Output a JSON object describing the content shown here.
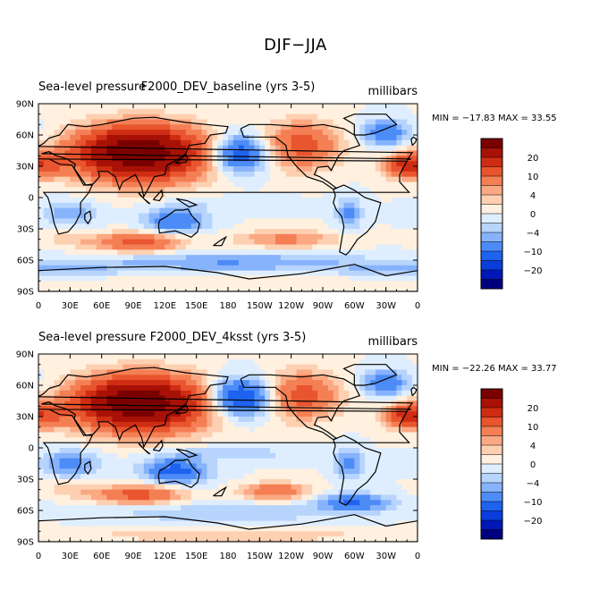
{
  "title": "DJF−JJA",
  "colorbar": {
    "colors": [
      "#00007f",
      "#0018b8",
      "#0a3ddc",
      "#1e62f0",
      "#4d8cf7",
      "#86b3fb",
      "#b7d4fd",
      "#dfeefe",
      "#fff0df",
      "#fdd0b2",
      "#fba983",
      "#f47f54",
      "#e8552e",
      "#cf2d13",
      "#a81106",
      "#7a0000"
    ],
    "levels": [
      -30,
      -20,
      -15,
      -10,
      -6,
      -4,
      -2,
      0,
      2,
      4,
      6,
      10,
      15,
      20,
      30
    ],
    "labels": [
      "20",
      "10",
      "4",
      "0",
      "−4",
      "−10",
      "−20"
    ]
  },
  "chart_data": [
    {
      "type": "heatmap",
      "title_left": "Sea-level pressure",
      "title_center": "F2000_DEV_baseline (yrs 3-5)",
      "units": "millibars",
      "stats": "MIN = −17.83 MAX =  33.55",
      "min": -17.83,
      "max": 33.55,
      "x_ticks": [
        "0",
        "30E",
        "60E",
        "90E",
        "120E",
        "150E",
        "180",
        "150W",
        "120W",
        "90W",
        "60W",
        "30W",
        "0"
      ],
      "y_ticks": [
        "90N",
        "60N",
        "30N",
        "0",
        "30S",
        "60S",
        "90S"
      ],
      "xlim": [
        0,
        360
      ],
      "ylim": [
        -90,
        90
      ],
      "features": [
        {
          "lon": 100,
          "lat": 42,
          "w": 60,
          "h": 25,
          "v": 30
        },
        {
          "lon": 85,
          "lat": 45,
          "w": 40,
          "h": 18,
          "v": 12
        },
        {
          "lon": 5,
          "lat": 32,
          "w": 22,
          "h": 13,
          "v": 10
        },
        {
          "lon": 250,
          "lat": 50,
          "w": 35,
          "h": 22,
          "v": 12
        },
        {
          "lon": 345,
          "lat": 30,
          "w": 18,
          "h": 10,
          "v": 12
        },
        {
          "lon": 190,
          "lat": 42,
          "w": 28,
          "h": 18,
          "v": -15
        },
        {
          "lon": 330,
          "lat": 62,
          "w": 22,
          "h": 12,
          "v": -10
        },
        {
          "lon": 130,
          "lat": -22,
          "w": 28,
          "h": 12,
          "v": -10
        },
        {
          "lon": 30,
          "lat": -15,
          "w": 25,
          "h": 12,
          "v": -6
        },
        {
          "lon": 295,
          "lat": -15,
          "w": 12,
          "h": 14,
          "v": -7
        },
        {
          "lon": 180,
          "lat": -5,
          "w": 60,
          "h": 6,
          "v": -2
        },
        {
          "lon": 95,
          "lat": -43,
          "w": 40,
          "h": 9,
          "v": 12
        },
        {
          "lon": 235,
          "lat": -40,
          "w": 48,
          "h": 8,
          "v": 7
        },
        {
          "lon": 30,
          "lat": -40,
          "w": 25,
          "h": 8,
          "v": 3
        },
        {
          "lon": 180,
          "lat": -62,
          "w": 120,
          "h": 9,
          "v": -6
        },
        {
          "lon": 0,
          "lat": -68,
          "w": 90,
          "h": 8,
          "v": -4
        },
        {
          "lon": 180,
          "lat": -84,
          "w": 180,
          "h": 8,
          "v": 2
        }
      ]
    },
    {
      "type": "heatmap",
      "title_left": "Sea-level pressure",
      "title_center": "F2000_DEV_4ksst (yrs 3-5)",
      "units": "millibars",
      "stats": "MIN = −22.26 MAX =  33.77",
      "min": -22.26,
      "max": 33.77,
      "x_ticks": [
        "0",
        "30E",
        "60E",
        "90E",
        "120E",
        "150E",
        "180",
        "150W",
        "120W",
        "90W",
        "60W",
        "30W",
        "0"
      ],
      "y_ticks": [
        "90N",
        "60N",
        "30N",
        "0",
        "30S",
        "60S",
        "90S"
      ],
      "xlim": [
        0,
        360
      ],
      "ylim": [
        -90,
        90
      ],
      "features": [
        {
          "lon": 100,
          "lat": 42,
          "w": 60,
          "h": 25,
          "v": 30
        },
        {
          "lon": 85,
          "lat": 45,
          "w": 40,
          "h": 18,
          "v": 12
        },
        {
          "lon": 5,
          "lat": 32,
          "w": 22,
          "h": 13,
          "v": 10
        },
        {
          "lon": 250,
          "lat": 50,
          "w": 35,
          "h": 22,
          "v": 12
        },
        {
          "lon": 345,
          "lat": 30,
          "w": 18,
          "h": 10,
          "v": 12
        },
        {
          "lon": 192,
          "lat": 48,
          "w": 30,
          "h": 18,
          "v": -17
        },
        {
          "lon": 330,
          "lat": 62,
          "w": 22,
          "h": 12,
          "v": -10
        },
        {
          "lon": 130,
          "lat": -22,
          "w": 30,
          "h": 12,
          "v": -12
        },
        {
          "lon": 30,
          "lat": -15,
          "w": 25,
          "h": 12,
          "v": -8
        },
        {
          "lon": 295,
          "lat": -15,
          "w": 12,
          "h": 14,
          "v": -8
        },
        {
          "lon": 180,
          "lat": -5,
          "w": 60,
          "h": 6,
          "v": -4
        },
        {
          "lon": 95,
          "lat": -45,
          "w": 40,
          "h": 9,
          "v": 12
        },
        {
          "lon": 225,
          "lat": -42,
          "w": 30,
          "h": 8,
          "v": 10
        },
        {
          "lon": 300,
          "lat": -52,
          "w": 35,
          "h": 8,
          "v": -10
        },
        {
          "lon": 30,
          "lat": -40,
          "w": 25,
          "h": 8,
          "v": 3
        },
        {
          "lon": 180,
          "lat": -62,
          "w": 120,
          "h": 9,
          "v": -4
        },
        {
          "lon": 180,
          "lat": -84,
          "w": 180,
          "h": 8,
          "v": 3
        }
      ]
    }
  ]
}
